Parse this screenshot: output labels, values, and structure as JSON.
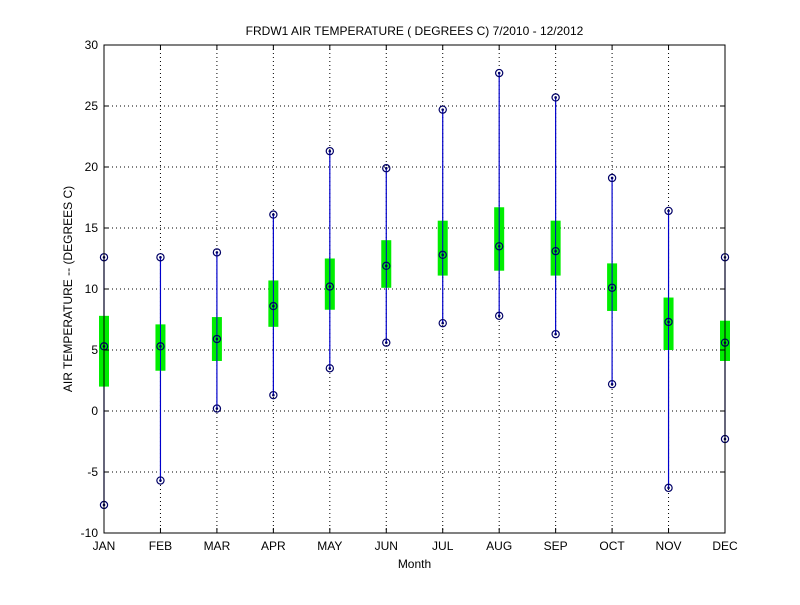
{
  "chart_data": {
    "type": "boxplot",
    "title": "FRDW1  AIR TEMPERATURE ( DEGREES C) 7/2010 - 12/2012",
    "xlabel": "Month",
    "ylabel": "AIR TEMPERATURE -- (DEGREES C)",
    "ylim": [
      -10,
      30
    ],
    "yticks": [
      -10,
      -5,
      0,
      5,
      10,
      15,
      20,
      25,
      30
    ],
    "grid": true,
    "categories": [
      "JAN",
      "FEB",
      "MAR",
      "APR",
      "MAY",
      "JUN",
      "JUL",
      "AUG",
      "SEP",
      "OCT",
      "NOV",
      "DEC"
    ],
    "min": [
      -7.7,
      -5.7,
      0.2,
      1.3,
      3.5,
      5.6,
      7.2,
      7.8,
      6.3,
      2.2,
      -6.3,
      -2.3
    ],
    "q1": [
      2.0,
      3.3,
      4.1,
      6.9,
      8.3,
      10.1,
      11.1,
      11.5,
      11.1,
      8.2,
      5.0,
      4.1
    ],
    "median": [
      5.3,
      5.3,
      5.9,
      8.6,
      10.2,
      11.9,
      12.8,
      13.5,
      13.1,
      10.1,
      7.3,
      5.6
    ],
    "q3": [
      7.8,
      7.1,
      7.7,
      10.7,
      12.5,
      14.0,
      15.6,
      16.7,
      15.6,
      12.1,
      9.3,
      7.4
    ],
    "max": [
      12.6,
      12.6,
      13.0,
      16.1,
      21.3,
      19.9,
      24.7,
      27.7,
      25.7,
      19.1,
      16.4,
      12.6
    ],
    "colors": {
      "whisker": "#0000cc",
      "box": "#00ee00",
      "marker": "#000066",
      "grid": "#000000"
    }
  }
}
